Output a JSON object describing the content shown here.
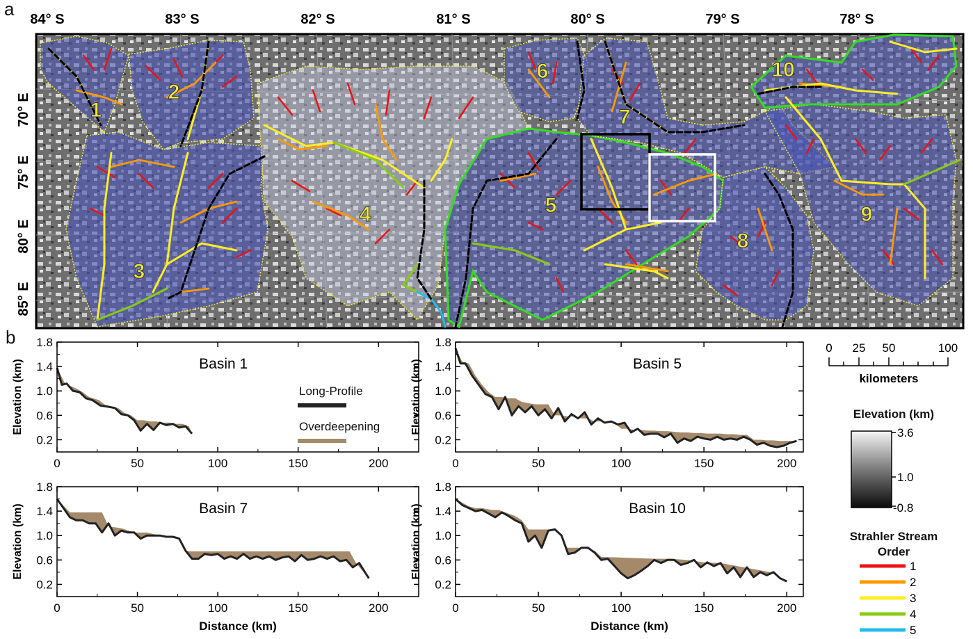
{
  "panel_a": {
    "label": "a",
    "lat_labels": [
      "84° S",
      "83° S",
      "82° S",
      "81° S",
      "80° S",
      "79° S",
      "78° S"
    ],
    "lon_labels": [
      "70° E",
      "75° E",
      "80° E",
      "85° E"
    ],
    "basin_labels": [
      "1",
      "2",
      "3",
      "4",
      "5",
      "6",
      "7",
      "8",
      "9",
      "10"
    ]
  },
  "panel_b": {
    "label": "b",
    "legend": {
      "long_profile": "Long-Profile",
      "overdeepening": "Overdeepening",
      "long_profile_color": "#222222",
      "overdeepening_color": "#a48a6b"
    }
  },
  "scale_bar": {
    "ticks": [
      "0",
      "25",
      "50",
      "100"
    ],
    "unit": "kilometers"
  },
  "elevation_legend": {
    "title": "Elevation (km)",
    "ticks": [
      "3.6",
      "1.0",
      "-0.8"
    ]
  },
  "strahler_legend": {
    "title_line1": "Strahler Stream",
    "title_line2": "Order",
    "orders": [
      {
        "label": "1",
        "color": "#ee1111"
      },
      {
        "label": "2",
        "color": "#ff9900"
      },
      {
        "label": "3",
        "color": "#ffee22"
      },
      {
        "label": "4",
        "color": "#88cc11"
      },
      {
        "label": "5",
        "color": "#22bbee"
      }
    ]
  },
  "chart_data": [
    {
      "type": "area",
      "title": "Basin 1",
      "xlabel": "",
      "ylabel": "Elevation (km)",
      "xlim": [
        0,
        225
      ],
      "ylim": [
        0,
        1.8
      ],
      "xticks": [
        "0",
        "50",
        "100",
        "150",
        "200"
      ],
      "yticks": [
        "0.2",
        "0.6",
        "1.0",
        "1.4",
        "1.8"
      ],
      "long_profile": {
        "x": [
          0,
          3,
          6,
          10,
          14,
          18,
          22,
          27,
          32,
          36,
          40,
          44,
          48,
          52,
          56,
          60,
          64,
          68,
          72,
          76,
          80,
          84
        ],
        "y": [
          1.38,
          1.1,
          1.12,
          1.0,
          0.98,
          0.88,
          0.85,
          0.76,
          0.74,
          0.72,
          0.62,
          0.6,
          0.52,
          0.35,
          0.46,
          0.36,
          0.48,
          0.44,
          0.46,
          0.4,
          0.42,
          0.3
        ]
      },
      "overdeepening": {
        "x": [
          0,
          5,
          12,
          16,
          20,
          26,
          30,
          34,
          38,
          42,
          46,
          50,
          54,
          58,
          62,
          66,
          70,
          74,
          78,
          82,
          84
        ],
        "y": [
          1.38,
          1.12,
          1.04,
          0.98,
          0.9,
          0.85,
          0.77,
          0.74,
          0.72,
          0.64,
          0.6,
          0.52,
          0.52,
          0.5,
          0.5,
          0.48,
          0.48,
          0.46,
          0.46,
          0.42,
          0.3
        ]
      }
    },
    {
      "type": "area",
      "title": "Basin 5",
      "xlabel": "",
      "ylabel": "Elevation (km)",
      "xlim": [
        0,
        210
      ],
      "ylim": [
        0,
        1.8
      ],
      "xticks": [
        "0",
        "50",
        "100",
        "150",
        "200"
      ],
      "yticks": [
        "0.2",
        "0.6",
        "1.0",
        "1.4",
        "1.8"
      ],
      "long_profile": {
        "x": [
          0,
          3,
          6,
          10,
          14,
          18,
          22,
          26,
          30,
          34,
          38,
          42,
          46,
          50,
          54,
          58,
          62,
          66,
          70,
          74,
          78,
          82,
          86,
          90,
          94,
          98,
          102,
          106,
          110,
          114,
          118,
          122,
          126,
          130,
          134,
          138,
          142,
          146,
          150,
          154,
          158,
          162,
          166,
          170,
          174,
          178,
          182,
          186,
          190,
          194,
          198,
          202,
          206
        ],
        "y": [
          1.7,
          1.45,
          1.45,
          1.25,
          1.1,
          0.95,
          0.9,
          0.7,
          0.9,
          0.6,
          0.75,
          0.65,
          0.75,
          0.6,
          0.7,
          0.55,
          0.72,
          0.5,
          0.62,
          0.55,
          0.65,
          0.45,
          0.55,
          0.48,
          0.5,
          0.45,
          0.48,
          0.32,
          0.38,
          0.28,
          0.3,
          0.3,
          0.24,
          0.3,
          0.15,
          0.22,
          0.18,
          0.25,
          0.22,
          0.2,
          0.25,
          0.2,
          0.22,
          0.2,
          0.25,
          0.2,
          0.12,
          0.15,
          0.1,
          0.08,
          0.1,
          0.15,
          0.18
        ]
      },
      "overdeepening": {
        "x": [
          0,
          4,
          8,
          12,
          16,
          20,
          24,
          28,
          32,
          36,
          40,
          44,
          48,
          52,
          56,
          60,
          64,
          68,
          72,
          76,
          80,
          84,
          88,
          92,
          96,
          100,
          104,
          108,
          112,
          116,
          120,
          124,
          128,
          132,
          136,
          140,
          144,
          148,
          152,
          156,
          160,
          164,
          168,
          172,
          176,
          180,
          184,
          188,
          192,
          196,
          200,
          204,
          206
        ],
        "y": [
          1.7,
          1.48,
          1.45,
          1.25,
          1.1,
          0.98,
          0.9,
          0.9,
          0.88,
          0.88,
          0.82,
          0.8,
          0.78,
          0.78,
          0.78,
          0.6,
          0.6,
          0.58,
          0.58,
          0.55,
          0.55,
          0.5,
          0.5,
          0.48,
          0.48,
          0.38,
          0.38,
          0.36,
          0.36,
          0.35,
          0.35,
          0.34,
          0.34,
          0.33,
          0.32,
          0.32,
          0.31,
          0.31,
          0.3,
          0.3,
          0.3,
          0.29,
          0.29,
          0.28,
          0.28,
          0.2,
          0.2,
          0.19,
          0.19,
          0.18,
          0.18,
          0.18,
          0.18
        ]
      }
    },
    {
      "type": "area",
      "title": "Basin 7",
      "xlabel": "Distance (km)",
      "ylabel": "Elevation (km)",
      "xlim": [
        0,
        225
      ],
      "ylim": [
        0,
        1.8
      ],
      "xticks": [
        "0",
        "50",
        "100",
        "150",
        "200"
      ],
      "yticks": [
        "0.2",
        "0.6",
        "1.0",
        "1.4",
        "1.8"
      ],
      "long_profile": {
        "x": [
          0,
          4,
          8,
          12,
          16,
          20,
          24,
          28,
          32,
          36,
          40,
          44,
          48,
          52,
          56,
          60,
          64,
          68,
          72,
          76,
          80,
          84,
          88,
          92,
          96,
          100,
          104,
          108,
          112,
          116,
          120,
          124,
          128,
          132,
          136,
          140,
          144,
          148,
          152,
          156,
          160,
          164,
          168,
          172,
          176,
          180,
          184,
          188,
          192,
          194
        ],
        "y": [
          1.6,
          1.45,
          1.3,
          1.25,
          1.25,
          1.2,
          1.2,
          1.05,
          1.2,
          1.0,
          1.08,
          1.05,
          1.05,
          0.95,
          1.0,
          1.0,
          1.0,
          0.98,
          0.98,
          0.95,
          0.75,
          0.62,
          0.62,
          0.7,
          0.68,
          0.7,
          0.62,
          0.66,
          0.62,
          0.7,
          0.62,
          0.66,
          0.62,
          0.66,
          0.6,
          0.64,
          0.66,
          0.58,
          0.68,
          0.6,
          0.62,
          0.66,
          0.62,
          0.66,
          0.58,
          0.6,
          0.48,
          0.55,
          0.38,
          0.3
        ]
      },
      "overdeepening": {
        "x": [
          0,
          8,
          12,
          20,
          28,
          32,
          40,
          48,
          56,
          64,
          72,
          76,
          80,
          84,
          96,
          110,
          130,
          150,
          170,
          182,
          186,
          194
        ],
        "y": [
          1.6,
          1.38,
          1.38,
          1.38,
          1.38,
          1.15,
          1.12,
          1.05,
          1.05,
          1.0,
          0.98,
          0.95,
          0.75,
          0.74,
          0.74,
          0.74,
          0.74,
          0.74,
          0.74,
          0.74,
          0.55,
          0.3
        ]
      }
    },
    {
      "type": "area",
      "title": "Basin 10",
      "xlabel": "Distance (km)",
      "ylabel": "Elevation (km)",
      "xlim": [
        0,
        210
      ],
      "ylim": [
        0,
        1.8
      ],
      "xticks": [
        "0",
        "50",
        "100",
        "150",
        "200"
      ],
      "yticks": [
        "0.2",
        "0.6",
        "1.0",
        "1.4",
        "1.8"
      ],
      "long_profile": {
        "x": [
          0,
          4,
          8,
          12,
          16,
          20,
          24,
          28,
          32,
          36,
          40,
          44,
          48,
          52,
          56,
          60,
          64,
          68,
          72,
          76,
          80,
          84,
          88,
          92,
          96,
          100,
          104,
          108,
          112,
          116,
          120,
          124,
          128,
          132,
          136,
          140,
          144,
          148,
          152,
          156,
          160,
          164,
          168,
          172,
          176,
          180,
          184,
          188,
          192,
          196,
          200
        ],
        "y": [
          1.6,
          1.5,
          1.45,
          1.4,
          1.42,
          1.36,
          1.3,
          1.38,
          1.32,
          1.25,
          1.2,
          0.9,
          1.0,
          0.8,
          1.08,
          1.1,
          1.0,
          0.7,
          0.72,
          0.8,
          0.8,
          0.72,
          0.6,
          0.62,
          0.5,
          0.38,
          0.3,
          0.35,
          0.42,
          0.5,
          0.6,
          0.55,
          0.6,
          0.6,
          0.52,
          0.55,
          0.6,
          0.48,
          0.56,
          0.5,
          0.55,
          0.38,
          0.48,
          0.32,
          0.48,
          0.32,
          0.4,
          0.35,
          0.4,
          0.3,
          0.25
        ]
      },
      "overdeepening": {
        "x": [
          0,
          8,
          12,
          16,
          22,
          26,
          30,
          36,
          40,
          44,
          60,
          64,
          66,
          70,
          76,
          84,
          88,
          100,
          110,
          120,
          130,
          140,
          150,
          160,
          170,
          180,
          186,
          190,
          200
        ],
        "y": [
          1.6,
          1.48,
          1.45,
          1.45,
          1.42,
          1.42,
          1.38,
          1.32,
          1.25,
          1.1,
          1.1,
          1.0,
          0.8,
          0.8,
          0.8,
          0.75,
          0.65,
          0.64,
          0.63,
          0.62,
          0.62,
          0.6,
          0.56,
          0.55,
          0.5,
          0.45,
          0.42,
          0.4,
          0.25
        ]
      }
    }
  ]
}
